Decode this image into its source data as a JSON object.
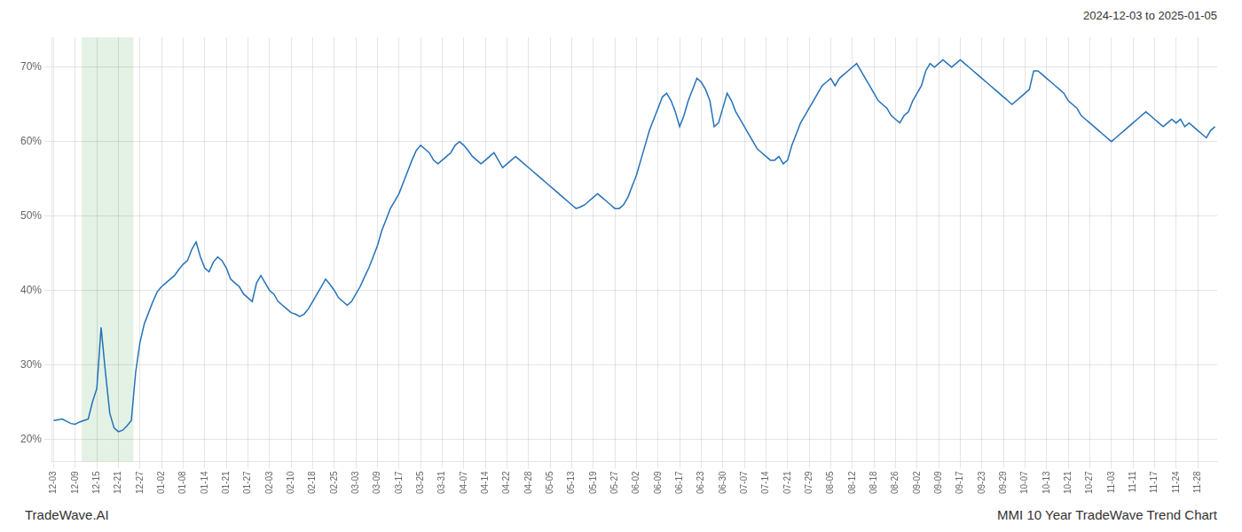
{
  "chart_data": {
    "type": "line",
    "title": "MMI 10 Year TradeWave Trend Chart",
    "subtitle": "2024-12-03 to 2025-01-05",
    "annotations": [
      "TradeWave.AI"
    ],
    "color": "#2471b8",
    "grid": true,
    "highlight": {
      "start": 7,
      "end": 18,
      "color": "#c8e6c9"
    },
    "ylim": [
      17,
      74
    ],
    "yticks": [
      {
        "value": 20,
        "label": "20%"
      },
      {
        "value": 30,
        "label": "30%"
      },
      {
        "value": 40,
        "label": "40%"
      },
      {
        "value": 50,
        "label": "50%"
      },
      {
        "value": 60,
        "label": "60%"
      },
      {
        "value": 70,
        "label": "70%"
      }
    ],
    "categories": [
      "12-03",
      null,
      null,
      null,
      null,
      "12-09",
      null,
      null,
      null,
      null,
      "12-15",
      null,
      null,
      null,
      null,
      "12-21",
      null,
      null,
      null,
      null,
      "12-27",
      null,
      null,
      null,
      null,
      "01-02",
      null,
      null,
      null,
      null,
      "01-08",
      null,
      null,
      null,
      null,
      "01-14",
      null,
      null,
      null,
      null,
      "01-21",
      null,
      null,
      null,
      null,
      "01-27",
      null,
      null,
      null,
      null,
      "02-03",
      null,
      null,
      null,
      null,
      "02-10",
      null,
      null,
      null,
      null,
      "02-18",
      null,
      null,
      null,
      null,
      "02-25",
      null,
      null,
      null,
      null,
      "03-03",
      null,
      null,
      null,
      null,
      "03-09",
      null,
      null,
      null,
      null,
      "03-17",
      null,
      null,
      null,
      null,
      "03-25",
      null,
      null,
      null,
      null,
      "03-31",
      null,
      null,
      null,
      null,
      "04-07",
      null,
      null,
      null,
      null,
      "04-14",
      null,
      null,
      null,
      null,
      "04-22",
      null,
      null,
      null,
      null,
      "04-28",
      null,
      null,
      null,
      null,
      "05-05",
      null,
      null,
      null,
      null,
      "05-13",
      null,
      null,
      null,
      null,
      "05-19",
      null,
      null,
      null,
      null,
      "05-27",
      null,
      null,
      null,
      null,
      "06-02",
      null,
      null,
      null,
      null,
      "06-09",
      null,
      null,
      null,
      null,
      "06-17",
      null,
      null,
      null,
      null,
      "06-23",
      null,
      null,
      null,
      null,
      "06-30",
      null,
      null,
      null,
      null,
      "07-07",
      null,
      null,
      null,
      null,
      "07-14",
      null,
      null,
      null,
      null,
      "07-21",
      null,
      null,
      null,
      null,
      "07-29",
      null,
      null,
      null,
      null,
      "08-05",
      null,
      null,
      null,
      null,
      "08-12",
      null,
      null,
      null,
      null,
      "08-18",
      null,
      null,
      null,
      null,
      "08-26",
      null,
      null,
      null,
      null,
      "09-02",
      null,
      null,
      null,
      null,
      "09-09",
      null,
      null,
      null,
      null,
      "09-17",
      null,
      null,
      null,
      null,
      "09-23",
      null,
      null,
      null,
      null,
      "09-29",
      null,
      null,
      null,
      null,
      "10-07",
      null,
      null,
      null,
      null,
      "10-13",
      null,
      null,
      null,
      null,
      "10-21",
      null,
      null,
      null,
      null,
      "10-27",
      null,
      null,
      null,
      null,
      "11-03",
      null,
      null,
      null,
      null,
      "11-11",
      null,
      null,
      null,
      null,
      "11-17",
      null,
      null,
      null,
      null,
      "11-24",
      null,
      null,
      null,
      null,
      "11-28",
      null,
      null,
      null,
      null
    ],
    "values": [
      22.5,
      22.6,
      22.7,
      22.4,
      22.1,
      22.0,
      22.3,
      22.5,
      22.7,
      25.0,
      26.8,
      35.0,
      29.0,
      23.5,
      21.5,
      21.0,
      21.2,
      21.8,
      22.5,
      29.0,
      33.0,
      35.5,
      37.0,
      38.5,
      39.8,
      40.5,
      41.0,
      41.5,
      42.0,
      42.8,
      43.5,
      44.0,
      45.5,
      46.5,
      44.5,
      43.0,
      42.5,
      43.8,
      44.5,
      44.0,
      43.0,
      41.5,
      41.0,
      40.5,
      39.5,
      39.0,
      38.5,
      41.0,
      42.0,
      41.0,
      40.0,
      39.5,
      38.5,
      38.0,
      37.5,
      37.0,
      36.8,
      36.5,
      36.8,
      37.5,
      38.5,
      39.5,
      40.5,
      41.5,
      40.8,
      40.0,
      39.0,
      38.5,
      38.0,
      38.5,
      39.5,
      40.5,
      41.8,
      43.0,
      44.5,
      46.0,
      48.0,
      49.5,
      51.0,
      52.0,
      53.0,
      54.5,
      56.0,
      57.5,
      58.8,
      59.5,
      59.0,
      58.5,
      57.5,
      57.0,
      57.5,
      58.0,
      58.5,
      59.5,
      60.0,
      59.5,
      58.8,
      58.0,
      57.5,
      57.0,
      57.5,
      58.0,
      58.5,
      57.5,
      56.5,
      57.0,
      57.5,
      58.0,
      57.5,
      57.0,
      56.5,
      56.0,
      55.5,
      55.0,
      54.5,
      54.0,
      53.5,
      53.0,
      52.5,
      52.0,
      51.5,
      51.0,
      51.2,
      51.5,
      52.0,
      52.5,
      53.0,
      52.5,
      52.0,
      51.5,
      51.0,
      51.0,
      51.5,
      52.5,
      54.0,
      55.5,
      57.5,
      59.5,
      61.5,
      63.0,
      64.5,
      66.0,
      66.5,
      65.5,
      64.0,
      62.0,
      63.5,
      65.5,
      67.0,
      68.5,
      68.0,
      67.0,
      65.5,
      62.0,
      62.5,
      64.5,
      66.5,
      65.5,
      64.0,
      63.0,
      62.0,
      61.0,
      60.0,
      59.0,
      58.5,
      58.0,
      57.5,
      57.5,
      58.0,
      57.0,
      57.5,
      59.5,
      61.0,
      62.5,
      63.5,
      64.5,
      65.5,
      66.5,
      67.5,
      68.0,
      68.5,
      67.5,
      68.5,
      69.0,
      69.5,
      70.0,
      70.5,
      69.5,
      68.5,
      67.5,
      66.5,
      65.5,
      65.0,
      64.5,
      63.5,
      63.0,
      62.5,
      63.5,
      64.0,
      65.5,
      66.5,
      67.5,
      69.5,
      70.5,
      70.0,
      70.5,
      71.0,
      70.5,
      70.0,
      70.5,
      71.0,
      70.5,
      70.0,
      69.5,
      69.0,
      68.5,
      68.0,
      67.5,
      67.0,
      66.5,
      66.0,
      65.5,
      65.0,
      65.5,
      66.0,
      66.5,
      67.0,
      69.5,
      69.5,
      69.0,
      68.5,
      68.0,
      67.5,
      67.0,
      66.5,
      65.5,
      65.0,
      64.5,
      63.5,
      63.0,
      62.5,
      62.0,
      61.5,
      61.0,
      60.5,
      60.0,
      60.5,
      61.0,
      61.5,
      62.0,
      62.5,
      63.0,
      63.5,
      64.0,
      63.5,
      63.0,
      62.5,
      62.0,
      62.5,
      63.0,
      62.5,
      63.0,
      62.0,
      62.5,
      62.0,
      61.5,
      61.0,
      60.5,
      61.5,
      62.0
    ]
  }
}
